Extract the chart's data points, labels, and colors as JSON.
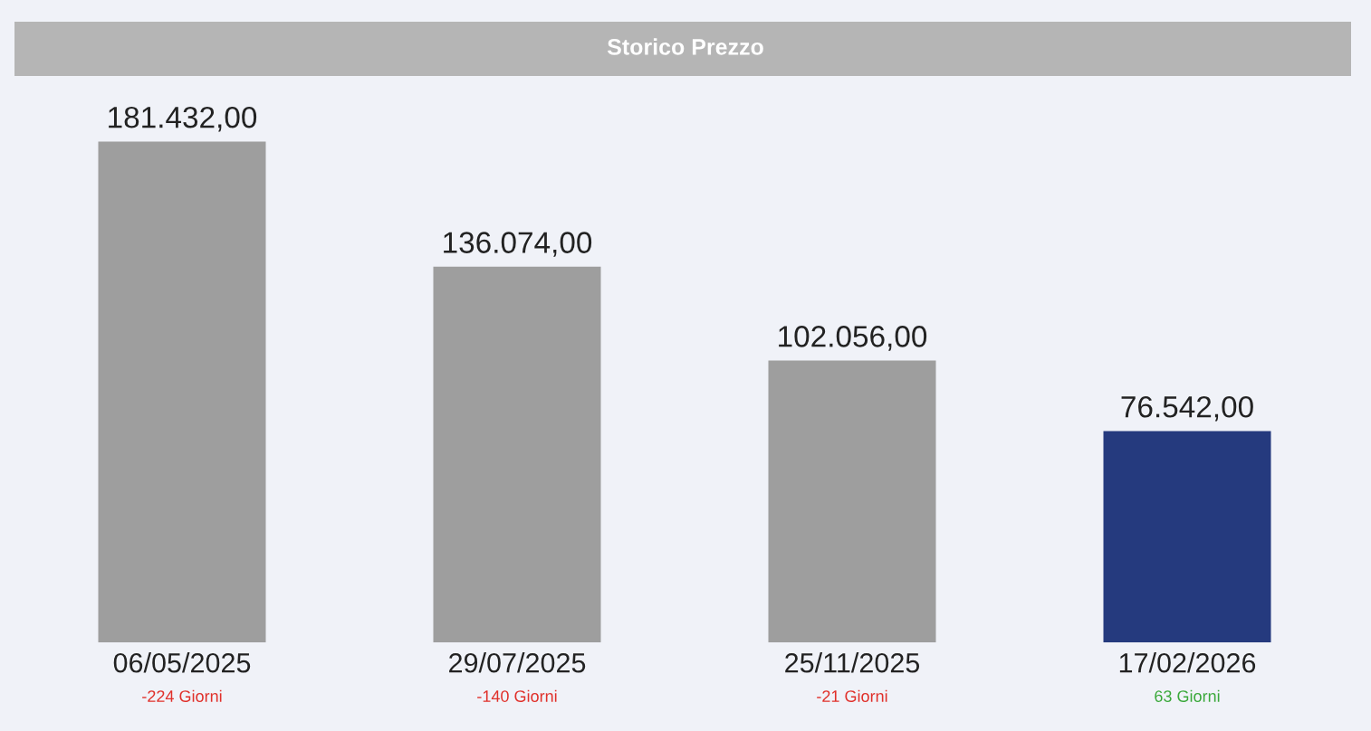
{
  "chart_data": {
    "type": "bar",
    "title": "Storico Prezzo",
    "categories": [
      "06/05/2025",
      "29/07/2025",
      "25/11/2025",
      "17/02/2026"
    ],
    "values": [
      181432,
      136074,
      102056,
      76542
    ],
    "value_labels": [
      "181.432,00",
      "136.074,00",
      "102.056,00",
      "76.542,00"
    ],
    "colors": [
      "#9e9e9e",
      "#9e9e9e",
      "#9e9e9e",
      "#253a7e"
    ],
    "annotations": [
      "-224 Giorni",
      "-140 Giorni",
      "-21 Giorni",
      "63 Giorni"
    ],
    "grid": false,
    "legend": false
  }
}
